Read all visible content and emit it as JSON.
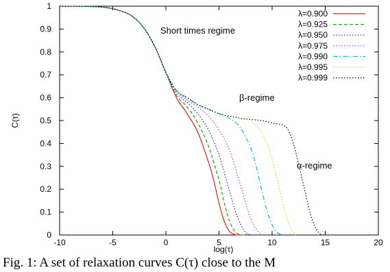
{
  "chart_data": {
    "type": "line",
    "xlabel": "log(τ)",
    "ylabel": "C(τ)",
    "xlim": [
      -10,
      20
    ],
    "ylim": [
      0,
      1
    ],
    "xticks": [
      "-10",
      "-5",
      "0",
      "5",
      "10",
      "15",
      "20"
    ],
    "yticks": [
      "0",
      "0.1",
      "0.2",
      "0.3",
      "0.4",
      "0.5",
      "0.6",
      "0.7",
      "0.8",
      "0.9",
      "1"
    ],
    "grid": false,
    "legend_position": "top-right",
    "annotations": [
      "Short times regime",
      "β-regime",
      "α-regime"
    ],
    "series": [
      {
        "name": "λ=0.900",
        "color": "#e41a1c",
        "dash": "solid",
        "points": [
          [
            -10,
            1
          ],
          [
            -6,
            0.996
          ],
          [
            -4,
            0.975
          ],
          [
            -3,
            0.95
          ],
          [
            -2,
            0.9
          ],
          [
            -1,
            0.82
          ],
          [
            0,
            0.71
          ],
          [
            1,
            0.6
          ],
          [
            2,
            0.53
          ],
          [
            3,
            0.45
          ],
          [
            4,
            0.32
          ],
          [
            4.5,
            0.24
          ],
          [
            5,
            0.14
          ],
          [
            5.5,
            0.06
          ],
          [
            6,
            0.015
          ],
          [
            6.5,
            0.002
          ],
          [
            7,
            0
          ]
        ]
      },
      {
        "name": "λ=0.925",
        "color": "#1aa31a",
        "dash": "dashed",
        "points": [
          [
            -10,
            1
          ],
          [
            -6,
            0.996
          ],
          [
            -4,
            0.975
          ],
          [
            -3,
            0.95
          ],
          [
            -2,
            0.9
          ],
          [
            -1,
            0.82
          ],
          [
            0,
            0.71
          ],
          [
            1,
            0.61
          ],
          [
            2,
            0.56
          ],
          [
            3,
            0.49
          ],
          [
            4,
            0.39
          ],
          [
            5,
            0.24
          ],
          [
            5.5,
            0.14
          ],
          [
            6,
            0.06
          ],
          [
            6.5,
            0.015
          ],
          [
            7,
            0.002
          ],
          [
            7.5,
            0
          ]
        ]
      },
      {
        "name": "λ=0.950",
        "color": "#1f1fcf",
        "dash": "dotted",
        "points": [
          [
            -10,
            1
          ],
          [
            -6,
            0.996
          ],
          [
            -4,
            0.975
          ],
          [
            -3,
            0.95
          ],
          [
            -2,
            0.9
          ],
          [
            -1,
            0.82
          ],
          [
            0,
            0.71
          ],
          [
            1,
            0.62
          ],
          [
            2,
            0.58
          ],
          [
            3,
            0.53
          ],
          [
            4,
            0.46
          ],
          [
            5,
            0.35
          ],
          [
            6,
            0.19
          ],
          [
            6.5,
            0.11
          ],
          [
            7,
            0.05
          ],
          [
            7.5,
            0.012
          ],
          [
            8,
            0
          ]
        ]
      },
      {
        "name": "λ=0.975",
        "color": "#d02fd0",
        "dash": "dotted",
        "points": [
          [
            -10,
            1
          ],
          [
            -6,
            0.996
          ],
          [
            -4,
            0.975
          ],
          [
            -3,
            0.95
          ],
          [
            -2,
            0.9
          ],
          [
            -1,
            0.82
          ],
          [
            0,
            0.71
          ],
          [
            1,
            0.63
          ],
          [
            2,
            0.59
          ],
          [
            3,
            0.56
          ],
          [
            4,
            0.52
          ],
          [
            5,
            0.46
          ],
          [
            6,
            0.37
          ],
          [
            7,
            0.22
          ],
          [
            7.5,
            0.14
          ],
          [
            8,
            0.07
          ],
          [
            8.5,
            0.025
          ],
          [
            9,
            0.003
          ],
          [
            9.3,
            0
          ]
        ]
      },
      {
        "name": "λ=0.990",
        "color": "#18b8cc",
        "dash": "dashdot",
        "points": [
          [
            -10,
            1
          ],
          [
            -6,
            0.996
          ],
          [
            -4,
            0.975
          ],
          [
            -3,
            0.95
          ],
          [
            -2,
            0.9
          ],
          [
            -1,
            0.82
          ],
          [
            0,
            0.71
          ],
          [
            1,
            0.63
          ],
          [
            2,
            0.6
          ],
          [
            3,
            0.57
          ],
          [
            4,
            0.55
          ],
          [
            5,
            0.53
          ],
          [
            6,
            0.51
          ],
          [
            7,
            0.47
          ],
          [
            8,
            0.38
          ],
          [
            8.5,
            0.3
          ],
          [
            9,
            0.2
          ],
          [
            9.5,
            0.11
          ],
          [
            10,
            0.045
          ],
          [
            10.5,
            0.01
          ],
          [
            11,
            0
          ]
        ]
      },
      {
        "name": "λ=0.995",
        "color": "#d8d21a",
        "dash": "dotted",
        "points": [
          [
            -10,
            1
          ],
          [
            -6,
            0.996
          ],
          [
            -4,
            0.975
          ],
          [
            -3,
            0.95
          ],
          [
            -2,
            0.9
          ],
          [
            -1,
            0.82
          ],
          [
            0,
            0.71
          ],
          [
            1,
            0.63
          ],
          [
            2,
            0.6
          ],
          [
            3,
            0.57
          ],
          [
            4,
            0.55
          ],
          [
            5,
            0.53
          ],
          [
            6,
            0.52
          ],
          [
            7,
            0.51
          ],
          [
            8,
            0.5
          ],
          [
            9,
            0.45
          ],
          [
            9.5,
            0.4
          ],
          [
            10,
            0.33
          ],
          [
            10.5,
            0.24
          ],
          [
            11,
            0.14
          ],
          [
            11.5,
            0.06
          ],
          [
            12,
            0.01
          ],
          [
            12.3,
            0
          ]
        ]
      },
      {
        "name": "λ=0.999",
        "color": "#000000",
        "dash": "dotted",
        "points": [
          [
            -10,
            1
          ],
          [
            -6,
            0.996
          ],
          [
            -4,
            0.975
          ],
          [
            -3,
            0.95
          ],
          [
            -2,
            0.9
          ],
          [
            -1,
            0.82
          ],
          [
            0,
            0.71
          ],
          [
            1,
            0.63
          ],
          [
            2,
            0.6
          ],
          [
            3,
            0.57
          ],
          [
            4,
            0.55
          ],
          [
            5,
            0.53
          ],
          [
            6,
            0.52
          ],
          [
            7,
            0.51
          ],
          [
            8,
            0.505
          ],
          [
            9,
            0.5
          ],
          [
            10,
            0.49
          ],
          [
            11,
            0.48
          ],
          [
            11.5,
            0.46
          ],
          [
            12,
            0.4
          ],
          [
            12.5,
            0.31
          ],
          [
            13,
            0.21
          ],
          [
            13.5,
            0.11
          ],
          [
            14,
            0.04
          ],
          [
            14.5,
            0.005
          ],
          [
            14.8,
            0
          ]
        ]
      }
    ]
  },
  "caption": "Fig. 1: A set of relaxation curves C(τ) close to the M"
}
